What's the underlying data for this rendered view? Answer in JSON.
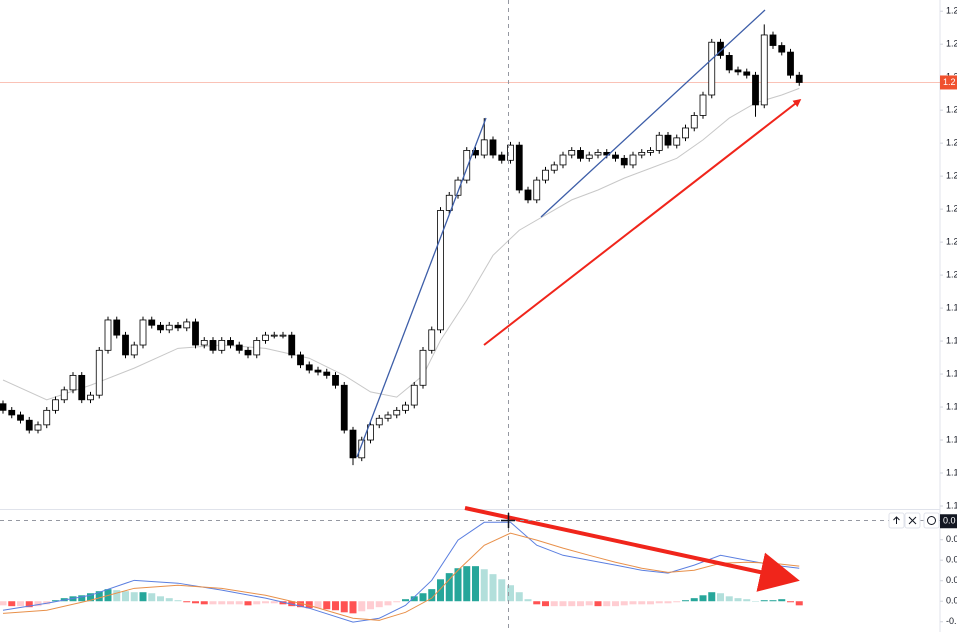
{
  "chart_data": [
    {
      "type": "candlestick",
      "open": [
        1.1805,
        1.1795,
        1.1788,
        1.178,
        1.1765,
        1.1773,
        1.1795,
        1.1811,
        1.1826,
        1.1848,
        1.1811,
        1.1818,
        1.1886,
        1.1932,
        1.1909,
        1.1879,
        1.1894,
        1.1932,
        1.1924,
        1.1917,
        1.1924,
        1.192,
        1.1929,
        1.1894,
        1.1901,
        1.1886,
        1.1901,
        1.1894,
        1.1886,
        1.1879,
        1.1901,
        1.1909,
        1.1909,
        1.1909,
        1.1879,
        1.1864,
        1.1856,
        1.1853,
        1.1848,
        1.1833,
        1.1765,
        1.1723,
        1.175,
        1.1773,
        1.1783,
        1.1788,
        1.1795,
        1.1803,
        1.1833,
        1.1886,
        1.1917,
        1.2098,
        1.2121,
        1.2144,
        1.2189,
        1.2182,
        1.2205,
        1.2182,
        1.2174,
        1.2197,
        1.2129,
        1.2114,
        1.2144,
        1.2159,
        1.2167,
        1.2182,
        1.2189,
        1.2177,
        1.2182,
        1.2186,
        1.2182,
        1.2177,
        1.2167,
        1.2182,
        1.2186,
        1.2189,
        1.2212,
        1.2197,
        1.2208,
        1.2223,
        1.2242,
        1.2273,
        1.2353,
        1.2333,
        1.2311,
        1.2308,
        1.2303,
        1.2258,
        1.2364,
        1.2348,
        1.2338,
        1.2303
      ],
      "high": [
        1.181,
        1.18,
        1.1793,
        1.1785,
        1.1778,
        1.18,
        1.1816,
        1.1831,
        1.1853,
        1.1853,
        1.1823,
        1.1891,
        1.1937,
        1.1937,
        1.1914,
        1.1899,
        1.1937,
        1.1937,
        1.1929,
        1.1929,
        1.1929,
        1.1934,
        1.1934,
        1.1906,
        1.1906,
        1.1906,
        1.1906,
        1.1899,
        1.1891,
        1.1906,
        1.1914,
        1.1914,
        1.1914,
        1.1914,
        1.1884,
        1.1869,
        1.1861,
        1.1858,
        1.1853,
        1.1838,
        1.177,
        1.1755,
        1.1778,
        1.1788,
        1.1793,
        1.18,
        1.1808,
        1.1838,
        1.1891,
        1.1922,
        1.2103,
        1.2126,
        1.2149,
        1.2194,
        1.2194,
        1.2238,
        1.221,
        1.2187,
        1.2202,
        1.2202,
        1.2134,
        1.2149,
        1.2164,
        1.2172,
        1.2187,
        1.2194,
        1.2194,
        1.2187,
        1.2191,
        1.2191,
        1.2187,
        1.2182,
        1.2187,
        1.2191,
        1.2194,
        1.2217,
        1.2217,
        1.2213,
        1.2228,
        1.2247,
        1.2278,
        1.2358,
        1.2358,
        1.2338,
        1.2316,
        1.2313,
        1.2308,
        1.238,
        1.2369,
        1.2353,
        1.2343,
        1.2308
      ],
      "low": [
        1.179,
        1.1783,
        1.1775,
        1.176,
        1.176,
        1.1768,
        1.179,
        1.1806,
        1.1821,
        1.1806,
        1.1806,
        1.1813,
        1.1881,
        1.1904,
        1.1874,
        1.1874,
        1.1889,
        1.1919,
        1.1912,
        1.1912,
        1.1915,
        1.1915,
        1.1889,
        1.1889,
        1.1881,
        1.1881,
        1.1889,
        1.1881,
        1.1874,
        1.1874,
        1.1896,
        1.1904,
        1.1904,
        1.1874,
        1.1859,
        1.1851,
        1.1848,
        1.1843,
        1.1828,
        1.176,
        1.1712,
        1.1718,
        1.1745,
        1.1768,
        1.1778,
        1.1783,
        1.179,
        1.1798,
        1.1828,
        1.1881,
        1.1912,
        1.2093,
        1.2116,
        1.2139,
        1.2177,
        1.2177,
        1.2177,
        1.2169,
        1.2169,
        1.2124,
        1.2109,
        1.2109,
        1.2139,
        1.2154,
        1.2162,
        1.2177,
        1.2172,
        1.2172,
        1.2177,
        1.2177,
        1.2172,
        1.2162,
        1.2162,
        1.2177,
        1.2181,
        1.2184,
        1.2192,
        1.2192,
        1.2203,
        1.2218,
        1.2237,
        1.2268,
        1.2328,
        1.2306,
        1.2303,
        1.2298,
        1.224,
        1.2253,
        1.2343,
        1.2333,
        1.2298,
        1.2287
      ],
      "close": [
        1.1795,
        1.1788,
        1.178,
        1.1765,
        1.1773,
        1.1795,
        1.1811,
        1.1826,
        1.1848,
        1.1811,
        1.1818,
        1.1886,
        1.1932,
        1.1909,
        1.1879,
        1.1894,
        1.1932,
        1.1924,
        1.1917,
        1.1924,
        1.192,
        1.1929,
        1.1894,
        1.1901,
        1.1886,
        1.1901,
        1.1894,
        1.1886,
        1.1879,
        1.1901,
        1.1909,
        1.1909,
        1.1909,
        1.1879,
        1.1864,
        1.1856,
        1.1853,
        1.1848,
        1.1833,
        1.1765,
        1.1723,
        1.175,
        1.1773,
        1.1783,
        1.1788,
        1.1795,
        1.1803,
        1.1833,
        1.1886,
        1.1917,
        1.2098,
        1.2121,
        1.2144,
        1.2189,
        1.2182,
        1.2205,
        1.2182,
        1.2174,
        1.2197,
        1.2129,
        1.2114,
        1.2144,
        1.2159,
        1.2167,
        1.2182,
        1.2189,
        1.2177,
        1.2182,
        1.2186,
        1.2182,
        1.2177,
        1.2167,
        1.2182,
        1.2186,
        1.2189,
        1.2212,
        1.2197,
        1.2208,
        1.2223,
        1.2242,
        1.2273,
        1.2353,
        1.2333,
        1.2311,
        1.2308,
        1.2303,
        1.2258,
        1.2364,
        1.2348,
        1.2338,
        1.2303,
        1.2292
      ],
      "ma": {
        "color": "#c8c8c8",
        "x": [
          0,
          5,
          10,
          15,
          20,
          25,
          30,
          35,
          39,
          42,
          45,
          48,
          50,
          53,
          56,
          59,
          62,
          65,
          68,
          71,
          74,
          77,
          80,
          83,
          86,
          89,
          91
        ],
        "values": [
          1.1841,
          1.1811,
          1.1833,
          1.1859,
          1.1889,
          1.1894,
          1.1889,
          1.1874,
          1.1848,
          1.1823,
          1.1815,
          1.1848,
          1.1901,
          1.1962,
          1.203,
          1.2068,
          1.2091,
          1.2114,
          1.2129,
          1.2147,
          1.2162,
          1.2177,
          1.2205,
          1.2238,
          1.2261,
          1.2273,
          1.2283
        ]
      },
      "up_color": "#ffffff",
      "down_color": "#000000",
      "border_color": "#000000",
      "ylim": [
        1.165,
        1.2417
      ],
      "yticks": [
        {
          "value": 1.24,
          "label": "1.2"
        },
        {
          "value": 1.235,
          "label": "1.2"
        },
        {
          "value": 1.23,
          "label": "1.2"
        },
        {
          "value": 1.225,
          "label": "1.2"
        },
        {
          "value": 1.22,
          "label": "1.2"
        },
        {
          "value": 1.215,
          "label": "1.2"
        },
        {
          "value": 1.21,
          "label": "1.2"
        },
        {
          "value": 1.205,
          "label": "1.2"
        },
        {
          "value": 1.2,
          "label": "1.2"
        },
        {
          "value": 1.195,
          "label": "1.1"
        },
        {
          "value": 1.19,
          "label": "1.1"
        },
        {
          "value": 1.185,
          "label": "1.1"
        },
        {
          "value": 1.18,
          "label": "1.1"
        },
        {
          "value": 1.175,
          "label": "1.1"
        },
        {
          "value": 1.17,
          "label": "1.1"
        },
        {
          "value": 1.165,
          "label": "1.1"
        }
      ],
      "price_label": "1.2",
      "price_label_color": "#f0512e"
    },
    {
      "type": "macd",
      "histogram": [
        -0.0002,
        -0.00024,
        -0.00024,
        -0.00029,
        -0.00024,
        -0.00015,
        5e-05,
        0.00015,
        0.00024,
        0.00029,
        0.00039,
        0.00049,
        0.00059,
        0.00054,
        0.00049,
        0.00044,
        0.00044,
        0.00039,
        0.00024,
        0.00015,
        5e-05,
        -5e-05,
        -0.0001,
        -0.00015,
        -0.00015,
        -0.00015,
        -0.00015,
        -0.00015,
        -0.0002,
        -0.00015,
        -0.0001,
        -0.0001,
        -0.00015,
        -0.00024,
        -0.00029,
        -0.00034,
        -0.00034,
        -0.00039,
        -0.00044,
        -0.00054,
        -0.00059,
        -0.00049,
        -0.00039,
        -0.00029,
        -0.0002,
        -5e-05,
        0.0001,
        0.00024,
        0.00039,
        0.00059,
        0.00107,
        0.00137,
        0.00161,
        0.00171,
        0.00171,
        0.00156,
        0.00132,
        0.00107,
        0.00078,
        0.00044,
        0.0001,
        -0.00015,
        -0.00024,
        -0.00024,
        -0.00024,
        -0.00024,
        -0.00024,
        -0.0002,
        -0.00024,
        -0.00024,
        -0.00024,
        -0.0002,
        -0.00015,
        -0.00015,
        -0.00015,
        -0.0001,
        -0.0001,
        -5e-05,
        5e-05,
        0.00015,
        0.00029,
        0.00044,
        0.00039,
        0.00024,
        0.00015,
        0.0001,
        0,
        5e-05,
        5e-05,
        0.0001,
        -5e-05,
        -0.0002
      ],
      "histogram_colors": {
        "rising_positive": "#26a69a",
        "falling_positive": "#b2dfdb",
        "falling_negative": "#ff5252",
        "rising_negative": "#ffcdd2"
      },
      "lines": [
        {
          "color": "#5b7fe0",
          "x": [
            0,
            5,
            10,
            15,
            20,
            25,
            30,
            35,
            40,
            43,
            46,
            49,
            52,
            55,
            58,
            61,
            64,
            67,
            70,
            73,
            76,
            79,
            82,
            85,
            88,
            91
          ],
          "values": [
            -0.00044,
            -0.0001,
            0.00029,
            0.00102,
            0.00088,
            0.00054,
            0.00015,
            -0.00034,
            -0.00102,
            -0.00083,
            -0.0002,
            0.00102,
            0.00298,
            0.00385,
            0.00385,
            0.00273,
            0.00224,
            0.002,
            0.00176,
            0.00151,
            0.00137,
            0.00176,
            0.00224,
            0.002,
            0.00176,
            0.00161
          ]
        },
        {
          "color": "#e8904a",
          "x": [
            0,
            5,
            10,
            15,
            20,
            25,
            30,
            35,
            40,
            43,
            46,
            49,
            52,
            55,
            58,
            61,
            64,
            67,
            70,
            73,
            76,
            79,
            82,
            85,
            88,
            91
          ],
          "values": [
            -0.00059,
            -0.00044,
            5e-05,
            0.00063,
            0.00078,
            0.00063,
            0.00029,
            -0.0002,
            -0.00083,
            -0.00093,
            -0.00054,
            0.00015,
            0.00151,
            0.00273,
            0.00332,
            0.00298,
            0.00259,
            0.00224,
            0.0019,
            0.00161,
            0.00141,
            0.00151,
            0.00185,
            0.0019,
            0.00185,
            0.00171
          ]
        }
      ],
      "ylim": [
        -0.0015,
        0.0044
      ],
      "yticks": [
        {
          "value": 0.003,
          "label": "0.0"
        },
        {
          "value": 0.002,
          "label": "0.0"
        },
        {
          "value": 0.001,
          "label": "0.0"
        },
        {
          "value": 0,
          "label": "0.0"
        },
        {
          "value": -0.001,
          "label": "-0."
        }
      ],
      "crosshair_label": {
        "value": 0.0039,
        "label": "0.0"
      }
    }
  ]
}
